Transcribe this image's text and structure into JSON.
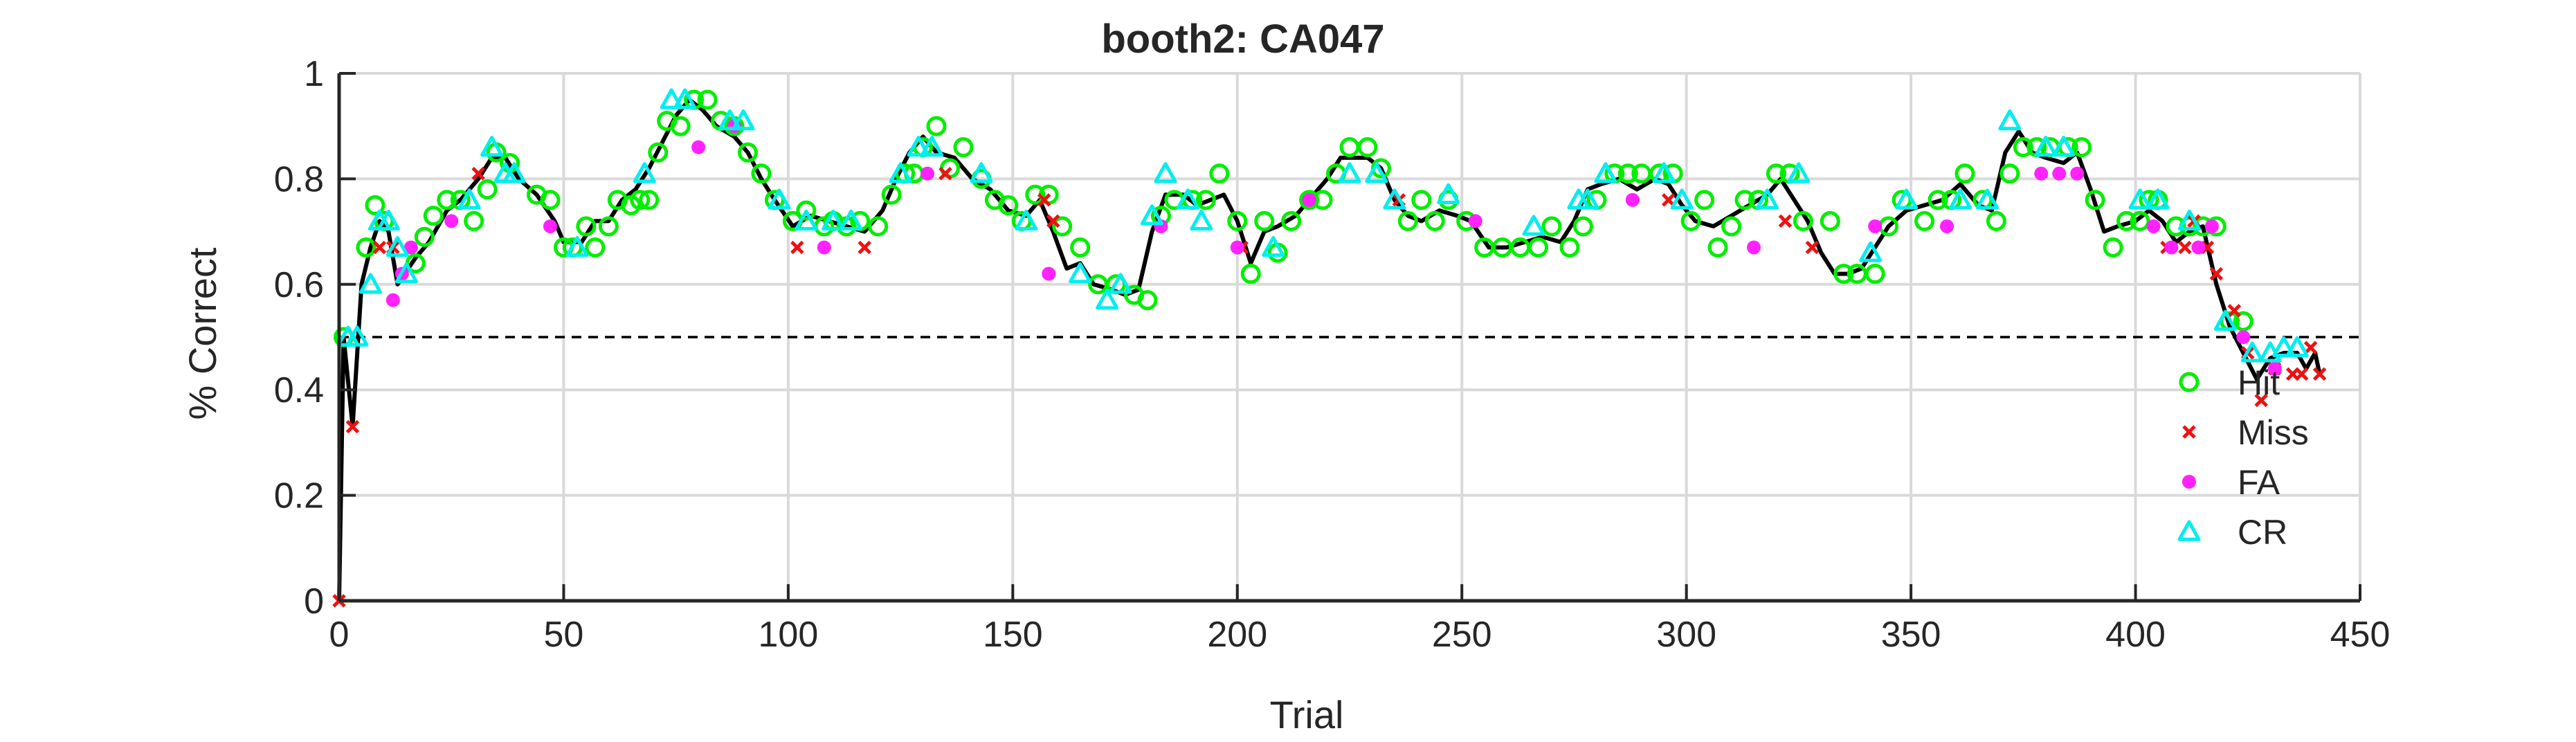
{
  "chart_data": {
    "type": "scatter",
    "title": "booth2: CA047",
    "xlabel": "Trial",
    "ylabel": "% Correct",
    "xlim": [
      0,
      450
    ],
    "ylim": [
      0,
      1
    ],
    "xticks": [
      0,
      50,
      100,
      150,
      200,
      250,
      300,
      350,
      400,
      450
    ],
    "yticks": [
      0,
      0.2,
      0.4,
      0.6,
      0.8,
      1
    ],
    "grid": true,
    "legend_position": "bottom-right",
    "reference_line": {
      "y": 0.5,
      "style": "dashed"
    },
    "colors": {
      "hit": "#00ee00",
      "miss": "#ee1111",
      "fa": "#ff22ff",
      "cr": "#00eeee",
      "line": "#000000"
    },
    "trace": [
      [
        0,
        0
      ],
      [
        1,
        0.5
      ],
      [
        3,
        0.33
      ],
      [
        5,
        0.6
      ],
      [
        7,
        0.67
      ],
      [
        9,
        0.72
      ],
      [
        11,
        0.7
      ],
      [
        13,
        0.6
      ],
      [
        17,
        0.65
      ],
      [
        20,
        0.68
      ],
      [
        24,
        0.74
      ],
      [
        27,
        0.76
      ],
      [
        31,
        0.8
      ],
      [
        34,
        0.84
      ],
      [
        37,
        0.84
      ],
      [
        40,
        0.8
      ],
      [
        44,
        0.77
      ],
      [
        48,
        0.72
      ],
      [
        50,
        0.68
      ],
      [
        54,
        0.68
      ],
      [
        57,
        0.72
      ],
      [
        60,
        0.72
      ],
      [
        63,
        0.76
      ],
      [
        66,
        0.78
      ],
      [
        69,
        0.82
      ],
      [
        72,
        0.87
      ],
      [
        75,
        0.92
      ],
      [
        78,
        0.95
      ],
      [
        81,
        0.93
      ],
      [
        84,
        0.9
      ],
      [
        88,
        0.88
      ],
      [
        91,
        0.85
      ],
      [
        94,
        0.8
      ],
      [
        97,
        0.76
      ],
      [
        101,
        0.71
      ],
      [
        105,
        0.73
      ],
      [
        109,
        0.72
      ],
      [
        113,
        0.71
      ],
      [
        117,
        0.7
      ],
      [
        121,
        0.74
      ],
      [
        124,
        0.8
      ],
      [
        127,
        0.85
      ],
      [
        130,
        0.88
      ],
      [
        133,
        0.85
      ],
      [
        137,
        0.84
      ],
      [
        141,
        0.8
      ],
      [
        145,
        0.78
      ],
      [
        149,
        0.74
      ],
      [
        153,
        0.73
      ],
      [
        156,
        0.76
      ],
      [
        159,
        0.7
      ],
      [
        162,
        0.63
      ],
      [
        165,
        0.64
      ],
      [
        168,
        0.6
      ],
      [
        172,
        0.59
      ],
      [
        175,
        0.58
      ],
      [
        178,
        0.59
      ],
      [
        181,
        0.7
      ],
      [
        184,
        0.77
      ],
      [
        188,
        0.77
      ],
      [
        191,
        0.75
      ],
      [
        194,
        0.76
      ],
      [
        197,
        0.77
      ],
      [
        200,
        0.72
      ],
      [
        203,
        0.64
      ],
      [
        206,
        0.7
      ],
      [
        209,
        0.71
      ],
      [
        213,
        0.73
      ],
      [
        217,
        0.77
      ],
      [
        220,
        0.8
      ],
      [
        223,
        0.84
      ],
      [
        226,
        0.84
      ],
      [
        229,
        0.84
      ],
      [
        232,
        0.82
      ],
      [
        235,
        0.76
      ],
      [
        238,
        0.73
      ],
      [
        241,
        0.72
      ],
      [
        245,
        0.74
      ],
      [
        249,
        0.73
      ],
      [
        252,
        0.72
      ],
      [
        256,
        0.67
      ],
      [
        260,
        0.67
      ],
      [
        264,
        0.68
      ],
      [
        268,
        0.69
      ],
      [
        272,
        0.68
      ],
      [
        275,
        0.72
      ],
      [
        278,
        0.78
      ],
      [
        281,
        0.79
      ],
      [
        285,
        0.8
      ],
      [
        289,
        0.78
      ],
      [
        293,
        0.8
      ],
      [
        296,
        0.79
      ],
      [
        299,
        0.75
      ],
      [
        302,
        0.72
      ],
      [
        306,
        0.71
      ],
      [
        310,
        0.73
      ],
      [
        314,
        0.75
      ],
      [
        318,
        0.77
      ],
      [
        321,
        0.8
      ],
      [
        324,
        0.76
      ],
      [
        327,
        0.72
      ],
      [
        330,
        0.66
      ],
      [
        333,
        0.62
      ],
      [
        336,
        0.62
      ],
      [
        339,
        0.63
      ],
      [
        342,
        0.67
      ],
      [
        345,
        0.71
      ],
      [
        349,
        0.74
      ],
      [
        353,
        0.75
      ],
      [
        357,
        0.76
      ],
      [
        361,
        0.79
      ],
      [
        365,
        0.75
      ],
      [
        368,
        0.74
      ],
      [
        371,
        0.85
      ],
      [
        374,
        0.89
      ],
      [
        377,
        0.85
      ],
      [
        380,
        0.84
      ],
      [
        384,
        0.83
      ],
      [
        387,
        0.85
      ],
      [
        390,
        0.78
      ],
      [
        393,
        0.7
      ],
      [
        396,
        0.71
      ],
      [
        400,
        0.72
      ],
      [
        403,
        0.74
      ],
      [
        406,
        0.72
      ],
      [
        409,
        0.68
      ],
      [
        412,
        0.7
      ],
      [
        415,
        0.71
      ],
      [
        418,
        0.6
      ],
      [
        421,
        0.52
      ],
      [
        424,
        0.47
      ],
      [
        427,
        0.42
      ],
      [
        430,
        0.46
      ],
      [
        433,
        0.47
      ],
      [
        436,
        0.47
      ],
      [
        438,
        0.44
      ],
      [
        440,
        0.47
      ],
      [
        441,
        0.43
      ]
    ],
    "series": [
      {
        "name": "Hit",
        "marker": "circle-open",
        "x": [
          1,
          6,
          8,
          10,
          17,
          19,
          21,
          24,
          27,
          30,
          33,
          35,
          38,
          44,
          47,
          50,
          52,
          55,
          57,
          60,
          62,
          65,
          67,
          69,
          71,
          73,
          76,
          79,
          82,
          85,
          88,
          91,
          94,
          97,
          101,
          104,
          108,
          110,
          113,
          116,
          120,
          123,
          126,
          128,
          130,
          133,
          136,
          139,
          143,
          146,
          149,
          152,
          155,
          158,
          161,
          165,
          169,
          173,
          177,
          180,
          183,
          186,
          190,
          193,
          196,
          200,
          203,
          206,
          209,
          212,
          216,
          219,
          222,
          225,
          229,
          232,
          238,
          241,
          244,
          247,
          251,
          255,
          259,
          263,
          267,
          270,
          274,
          277,
          280,
          284,
          287,
          290,
          294,
          297,
          301,
          304,
          307,
          310,
          313,
          316,
          320,
          323,
          326,
          332,
          335,
          338,
          342,
          345,
          348,
          353,
          356,
          359,
          362,
          366,
          369,
          372,
          375,
          378,
          381,
          385,
          388,
          391,
          395,
          398,
          401,
          403,
          405,
          409,
          412,
          415,
          418,
          421,
          424
        ],
        "y": [
          0.5,
          0.67,
          0.75,
          0.72,
          0.64,
          0.69,
          0.73,
          0.76,
          0.76,
          0.72,
          0.78,
          0.85,
          0.83,
          0.77,
          0.76,
          0.67,
          0.67,
          0.71,
          0.67,
          0.71,
          0.76,
          0.75,
          0.76,
          0.76,
          0.85,
          0.91,
          0.9,
          0.95,
          0.95,
          0.91,
          0.9,
          0.85,
          0.81,
          0.76,
          0.72,
          0.74,
          0.71,
          0.72,
          0.71,
          0.72,
          0.71,
          0.77,
          0.81,
          0.81,
          0.86,
          0.9,
          0.82,
          0.86,
          0.8,
          0.76,
          0.75,
          0.72,
          0.77,
          0.77,
          0.71,
          0.67,
          0.6,
          0.6,
          0.58,
          0.57,
          0.73,
          0.76,
          0.76,
          0.76,
          0.81,
          0.72,
          0.62,
          0.72,
          0.66,
          0.72,
          0.76,
          0.76,
          0.81,
          0.86,
          0.86,
          0.82,
          0.72,
          0.76,
          0.72,
          0.76,
          0.72,
          0.67,
          0.67,
          0.67,
          0.67,
          0.71,
          0.67,
          0.71,
          0.76,
          0.81,
          0.81,
          0.81,
          0.81,
          0.81,
          0.72,
          0.76,
          0.67,
          0.71,
          0.76,
          0.76,
          0.81,
          0.81,
          0.72,
          0.72,
          0.62,
          0.62,
          0.62,
          0.71,
          0.76,
          0.72,
          0.76,
          0.76,
          0.81,
          0.76,
          0.72,
          0.81,
          0.86,
          0.86,
          0.86,
          0.86,
          0.86,
          0.76,
          0.67,
          0.72,
          0.72,
          0.76,
          0.76,
          0.71,
          0.71,
          0.71,
          0.71,
          0.53,
          0.53
        ]
      },
      {
        "name": "Miss",
        "marker": "x",
        "x": [
          0,
          3,
          9,
          12,
          31,
          102,
          117,
          135,
          157,
          159,
          201,
          236,
          296,
          322,
          328,
          407,
          411,
          413,
          416,
          418,
          422,
          425,
          428,
          431,
          435,
          437,
          439,
          441
        ],
        "y": [
          0,
          0.33,
          0.67,
          0.67,
          0.81,
          0.67,
          0.67,
          0.81,
          0.76,
          0.72,
          0.67,
          0.76,
          0.76,
          0.72,
          0.67,
          0.67,
          0.67,
          0.72,
          0.67,
          0.62,
          0.55,
          0.47,
          0.38,
          0.44,
          0.43,
          0.43,
          0.48,
          0.43
        ]
      },
      {
        "name": "FA",
        "marker": "dot",
        "x": [
          12,
          14,
          16,
          25,
          47,
          80,
          88,
          108,
          131,
          158,
          183,
          200,
          216,
          253,
          288,
          315,
          342,
          358,
          379,
          383,
          387,
          404,
          408,
          414,
          417,
          424,
          431
        ],
        "y": [
          0.57,
          0.62,
          0.67,
          0.72,
          0.71,
          0.86,
          0.9,
          0.67,
          0.81,
          0.62,
          0.71,
          0.67,
          0.76,
          0.72,
          0.76,
          0.67,
          0.71,
          0.71,
          0.81,
          0.81,
          0.81,
          0.71,
          0.67,
          0.67,
          0.71,
          0.5,
          0.44
        ]
      },
      {
        "name": "CR",
        "marker": "triangle-open",
        "x": [
          2,
          4,
          7,
          9,
          11,
          13,
          15,
          29,
          34,
          37,
          39,
          53,
          68,
          74,
          77,
          87,
          90,
          98,
          104,
          110,
          114,
          125,
          129,
          132,
          143,
          153,
          165,
          171,
          174,
          181,
          184,
          189,
          192,
          208,
          225,
          231,
          235,
          247,
          266,
          276,
          278,
          282,
          295,
          299,
          318,
          325,
          341,
          349,
          361,
          367,
          372,
          380,
          384,
          401,
          405,
          412,
          420,
          426,
          430,
          433,
          436
        ],
        "y": [
          0.5,
          0.5,
          0.6,
          0.72,
          0.72,
          0.67,
          0.62,
          0.76,
          0.86,
          0.81,
          0.81,
          0.67,
          0.81,
          0.95,
          0.95,
          0.91,
          0.91,
          0.76,
          0.72,
          0.72,
          0.72,
          0.81,
          0.86,
          0.86,
          0.81,
          0.72,
          0.62,
          0.57,
          0.6,
          0.73,
          0.81,
          0.76,
          0.72,
          0.67,
          0.81,
          0.81,
          0.76,
          0.77,
          0.71,
          0.76,
          0.76,
          0.81,
          0.81,
          0.76,
          0.76,
          0.81,
          0.66,
          0.76,
          0.76,
          0.76,
          0.91,
          0.86,
          0.86,
          0.76,
          0.76,
          0.72,
          0.53,
          0.47,
          0.47,
          0.48,
          0.48
        ]
      }
    ]
  }
}
